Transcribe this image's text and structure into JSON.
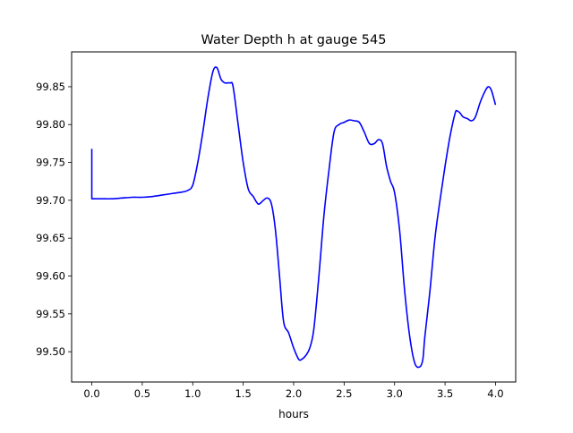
{
  "chart_data": {
    "type": "line",
    "title": "Water Depth h at gauge 545",
    "xlabel": "hours",
    "ylabel": "",
    "xlim": [
      -0.2,
      4.2
    ],
    "ylim": [
      99.46,
      99.896
    ],
    "xticks": [
      0.0,
      0.5,
      1.0,
      1.5,
      2.0,
      2.5,
      3.0,
      3.5,
      4.0
    ],
    "xtick_labels": [
      "0.0",
      "0.5",
      "1.0",
      "1.5",
      "2.0",
      "2.5",
      "3.0",
      "3.5",
      "4.0"
    ],
    "yticks": [
      99.5,
      99.55,
      99.6,
      99.65,
      99.7,
      99.75,
      99.8,
      99.85
    ],
    "ytick_labels": [
      "99.50",
      "99.55",
      "99.60",
      "99.65",
      "99.70",
      "99.75",
      "99.80",
      "99.85"
    ],
    "grid": false,
    "legend": false,
    "series": [
      {
        "color": "#0000ff",
        "x": [
          0.0,
          0.0,
          0.1,
          0.2,
          0.3,
          0.4,
          0.5,
          0.6,
          0.7,
          0.8,
          0.9,
          0.95,
          1.0,
          1.05,
          1.1,
          1.15,
          1.2,
          1.24,
          1.28,
          1.32,
          1.37,
          1.4,
          1.45,
          1.5,
          1.55,
          1.6,
          1.65,
          1.7,
          1.74,
          1.78,
          1.82,
          1.86,
          1.9,
          1.95,
          2.0,
          2.05,
          2.08,
          2.12,
          2.16,
          2.2,
          2.25,
          2.3,
          2.35,
          2.4,
          2.45,
          2.5,
          2.55,
          2.6,
          2.65,
          2.7,
          2.75,
          2.8,
          2.84,
          2.88,
          2.92,
          2.96,
          3.0,
          3.05,
          3.1,
          3.15,
          3.2,
          3.25,
          3.28,
          3.3,
          3.35,
          3.4,
          3.45,
          3.5,
          3.55,
          3.6,
          3.62,
          3.65,
          3.68,
          3.72,
          3.76,
          3.8,
          3.85,
          3.9,
          3.93,
          3.96,
          4.0
        ],
        "y": [
          99.768,
          99.702,
          99.702,
          99.702,
          99.703,
          99.704,
          99.704,
          99.705,
          99.707,
          99.709,
          99.711,
          99.713,
          99.72,
          99.75,
          99.79,
          99.835,
          99.87,
          99.875,
          99.86,
          99.855,
          99.855,
          99.85,
          99.8,
          99.75,
          99.715,
          99.705,
          99.695,
          99.7,
          99.703,
          99.695,
          99.66,
          99.6,
          99.54,
          99.525,
          99.505,
          99.49,
          99.49,
          99.495,
          99.505,
          99.53,
          99.6,
          99.68,
          99.74,
          99.79,
          99.8,
          99.803,
          99.806,
          99.805,
          99.803,
          99.79,
          99.775,
          99.775,
          99.78,
          99.775,
          99.745,
          99.725,
          99.71,
          99.66,
          99.58,
          99.52,
          99.485,
          99.48,
          99.49,
          99.52,
          99.58,
          99.65,
          99.7,
          99.745,
          99.785,
          99.815,
          99.818,
          99.815,
          99.81,
          99.808,
          99.805,
          99.81,
          99.83,
          99.845,
          99.85,
          99.845,
          99.826
        ]
      }
    ]
  }
}
